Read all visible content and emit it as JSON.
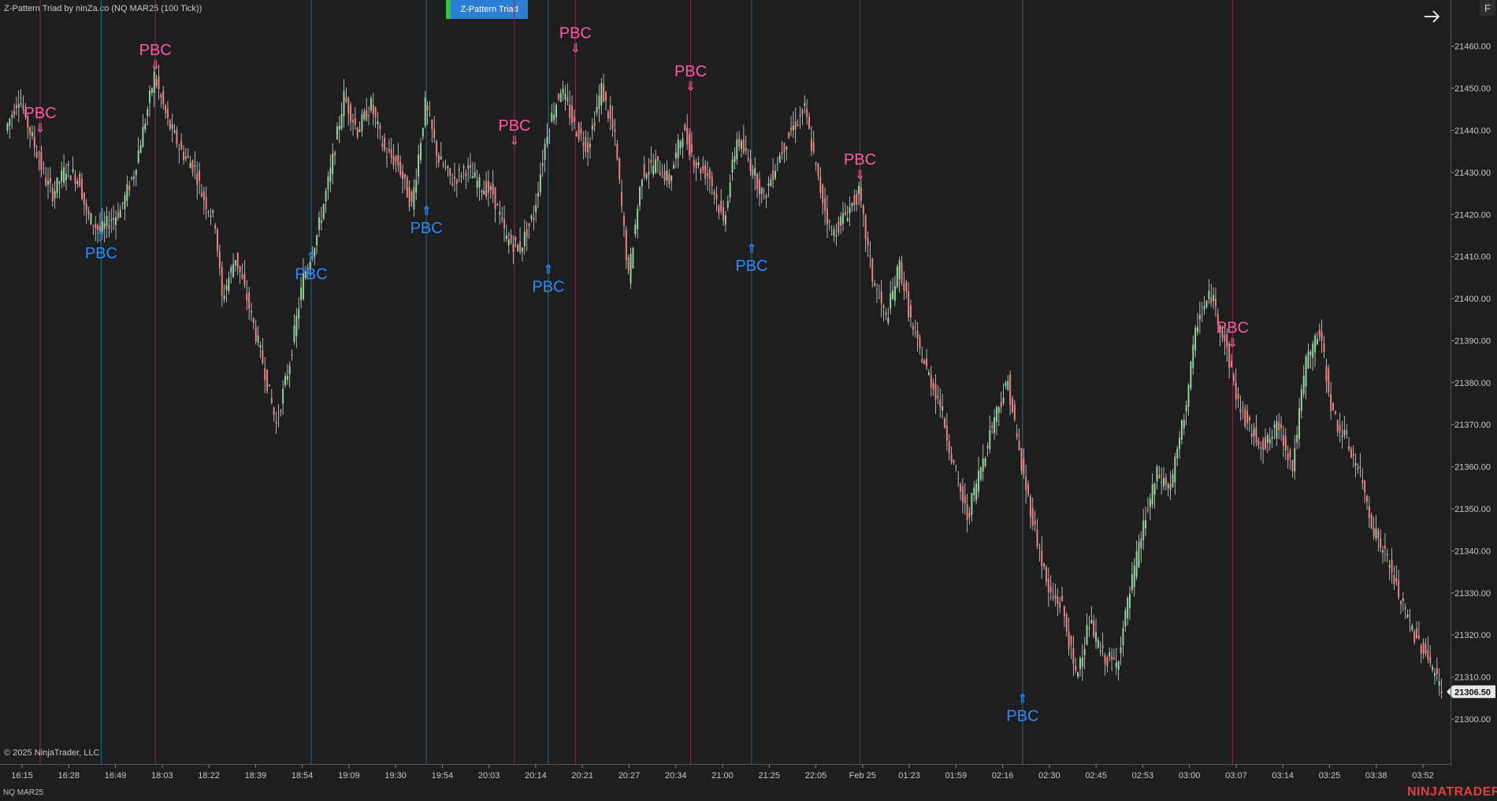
{
  "window": {
    "title": "Z-Pattern Triad by ninZa.co (NQ MAR25 (100 Tick))",
    "indicator_button_label": "Z-Pattern Triad",
    "f_button_label": "F",
    "instrument_label": "NQ MAR25",
    "copyright": "© 2025 NinjaTrader, LLC",
    "logo": "NINJATRADER"
  },
  "colors": {
    "background": "#1e1e1e",
    "up_candle": "#8fd39b",
    "down_candle": "#e88080",
    "wick": "#d8d8d8",
    "bearish_signal": "#ff5aa5",
    "bullish_signal": "#2b8bff",
    "bearish_line": "#8c2a55",
    "bullish_line": "#1f6f95",
    "price_tag_bg": "#e8e8e8"
  },
  "chart_data": {
    "type": "candlestick",
    "ylim": [
      21296,
      21465
    ],
    "price_ticks": [
      "21460.00",
      "21450.00",
      "21440.00",
      "21430.00",
      "21420.00",
      "21410.00",
      "21400.00",
      "21390.00",
      "21380.00",
      "21370.00",
      "21360.00",
      "21350.00",
      "21340.00",
      "21330.00",
      "21320.00",
      "21310.00",
      "21300.00"
    ],
    "time_ticks": [
      "16:15",
      "16:28",
      "16:49",
      "18:03",
      "18:22",
      "18:39",
      "18:54",
      "19:09",
      "19:30",
      "19:54",
      "20:03",
      "20:14",
      "20:21",
      "20:27",
      "20:34",
      "21:00",
      "21:25",
      "22:05",
      "Feb 25",
      "01:23",
      "01:59",
      "02:16",
      "02:30",
      "02:45",
      "02:53",
      "03:00",
      "03:07",
      "03:14",
      "03:25",
      "03:38",
      "03:52"
    ],
    "last_price": "21306.50",
    "price_path": [
      [
        0,
        21440
      ],
      [
        2,
        21448
      ],
      [
        4,
        21438
      ],
      [
        6,
        21428
      ],
      [
        7,
        21425
      ],
      [
        9,
        21431
      ],
      [
        11,
        21428
      ],
      [
        12,
        21420
      ],
      [
        14,
        21416
      ],
      [
        17,
        21421
      ],
      [
        19,
        21430
      ],
      [
        21,
        21445
      ],
      [
        22,
        21453
      ],
      [
        24,
        21442
      ],
      [
        26,
        21435
      ],
      [
        28,
        21431
      ],
      [
        29,
        21425
      ],
      [
        31,
        21418
      ],
      [
        32,
        21400
      ],
      [
        34,
        21410
      ],
      [
        36,
        21398
      ],
      [
        38,
        21385
      ],
      [
        40,
        21370
      ],
      [
        42,
        21385
      ],
      [
        44,
        21405
      ],
      [
        46,
        21415
      ],
      [
        48,
        21430
      ],
      [
        50,
        21448
      ],
      [
        52,
        21440
      ],
      [
        54,
        21446
      ],
      [
        56,
        21435
      ],
      [
        58,
        21432
      ],
      [
        60,
        21422
      ],
      [
        62,
        21446
      ],
      [
        64,
        21433
      ],
      [
        66,
        21428
      ],
      [
        68,
        21431
      ],
      [
        70,
        21427
      ],
      [
        72,
        21425
      ],
      [
        74,
        21414
      ],
      [
        76,
        21412
      ],
      [
        78,
        21420
      ],
      [
        80,
        21440
      ],
      [
        82,
        21450
      ],
      [
        84,
        21441
      ],
      [
        86,
        21436
      ],
      [
        88,
        21450
      ],
      [
        90,
        21438
      ],
      [
        92,
        21405
      ],
      [
        94,
        21430
      ],
      [
        96,
        21432
      ],
      [
        98,
        21428
      ],
      [
        100,
        21440
      ],
      [
        102,
        21432
      ],
      [
        104,
        21429
      ],
      [
        106,
        21418
      ],
      [
        108,
        21438
      ],
      [
        110,
        21432
      ],
      [
        112,
        21424
      ],
      [
        114,
        21433
      ],
      [
        116,
        21440
      ],
      [
        118,
        21445
      ],
      [
        120,
        21428
      ],
      [
        122,
        21415
      ],
      [
        124,
        21420
      ],
      [
        126,
        21425
      ],
      [
        128,
        21405
      ],
      [
        130,
        21395
      ],
      [
        132,
        21408
      ],
      [
        134,
        21392
      ],
      [
        136,
        21383
      ],
      [
        138,
        21375
      ],
      [
        140,
        21360
      ],
      [
        142,
        21348
      ],
      [
        144,
        21360
      ],
      [
        146,
        21372
      ],
      [
        148,
        21380
      ],
      [
        150,
        21360
      ],
      [
        152,
        21345
      ],
      [
        154,
        21330
      ],
      [
        156,
        21327
      ],
      [
        158,
        21310
      ],
      [
        160,
        21323
      ],
      [
        162,
        21315
      ],
      [
        164,
        21313
      ],
      [
        166,
        21330
      ],
      [
        168,
        21346
      ],
      [
        170,
        21358
      ],
      [
        172,
        21355
      ],
      [
        174,
        21372
      ],
      [
        176,
        21395
      ],
      [
        178,
        21401
      ],
      [
        180,
        21390
      ],
      [
        182,
        21375
      ],
      [
        184,
        21368
      ],
      [
        186,
        21365
      ],
      [
        188,
        21370
      ],
      [
        190,
        21360
      ],
      [
        192,
        21385
      ],
      [
        194,
        21392
      ],
      [
        196,
        21372
      ],
      [
        198,
        21366
      ],
      [
        200,
        21358
      ],
      [
        202,
        21345
      ],
      [
        204,
        21338
      ],
      [
        206,
        21328
      ],
      [
        208,
        21320
      ],
      [
        210,
        21315
      ],
      [
        212,
        21306.5
      ]
    ],
    "signals": [
      {
        "kind": "bearish",
        "label": "PBC",
        "arrow": "⇓",
        "bar": 5,
        "value": 21438
      },
      {
        "kind": "bullish",
        "label": "PBC",
        "arrow": "⇑",
        "bar": 14,
        "value": 21418
      },
      {
        "kind": "bearish",
        "label": "PBC",
        "arrow": "⇓",
        "bar": 22,
        "value": 21453
      },
      {
        "kind": "bullish",
        "label": "PBC",
        "arrow": "⇑",
        "bar": 45,
        "value": 21413
      },
      {
        "kind": "bullish",
        "label": "PBC",
        "arrow": "⇑",
        "bar": 62,
        "value": 21424
      },
      {
        "kind": "bearish",
        "label": "PBC",
        "arrow": "⇓",
        "bar": 75,
        "value": 21435
      },
      {
        "kind": "bullish",
        "label": "PBC",
        "arrow": "⇑",
        "bar": 80,
        "value": 21410
      },
      {
        "kind": "bearish",
        "label": "PBC",
        "arrow": "⇓",
        "bar": 84,
        "value": 21457
      },
      {
        "kind": "bearish",
        "label": "PBC",
        "arrow": "⇓",
        "bar": 101,
        "value": 21448
      },
      {
        "kind": "bullish",
        "label": "PBC",
        "arrow": "⇑",
        "bar": 110,
        "value": 21415
      },
      {
        "kind": "bearish",
        "label": "PBC",
        "arrow": "⇓",
        "bar": 126,
        "value": 21427
      },
      {
        "kind": "bullish",
        "label": "PBC",
        "arrow": "⇑",
        "bar": 150,
        "value": 21308
      },
      {
        "kind": "bearish",
        "label": "PBC",
        "arrow": "⇓",
        "bar": 181,
        "value": 21387
      }
    ],
    "grid": false
  }
}
